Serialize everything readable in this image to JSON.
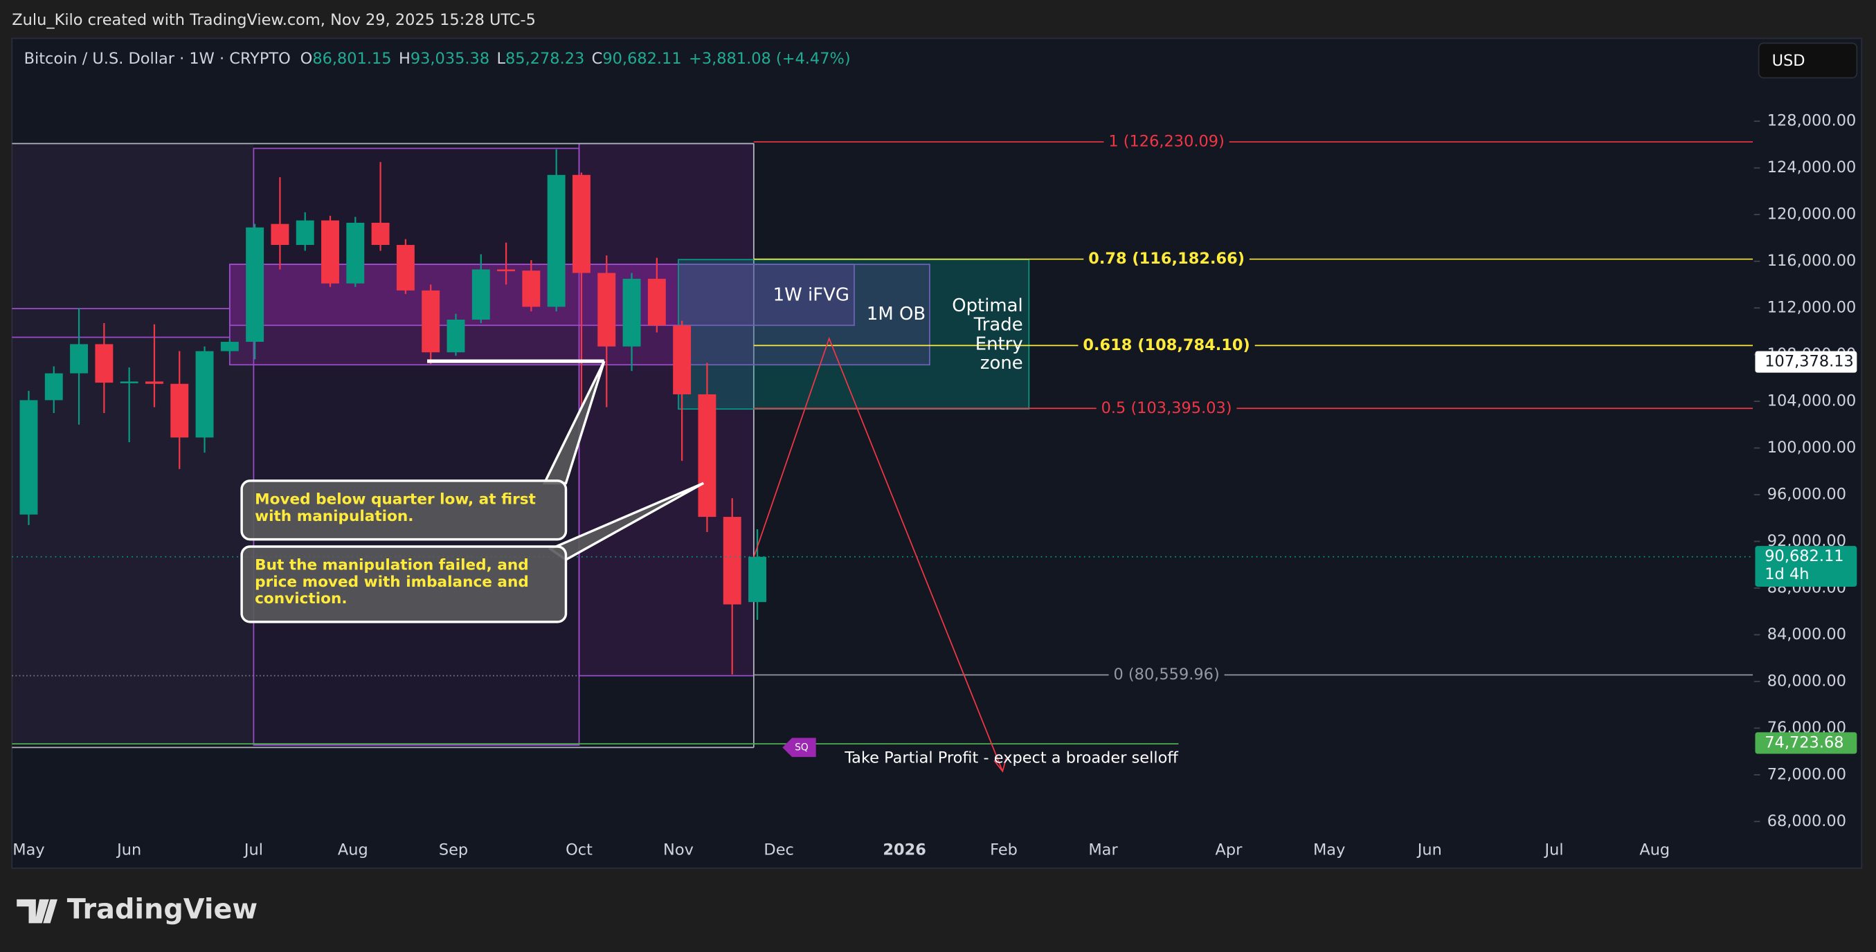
{
  "header": {
    "attribution": "Zulu_Kilo created with TradingView.com, Nov 29, 2025 15:28 UTC-5"
  },
  "legend": {
    "symbol": "Bitcoin / U.S. Dollar · 1W · CRYPTO",
    "open_key": "O",
    "open": "86,801.15",
    "high_key": "H",
    "high": "93,035.38",
    "low_key": "L",
    "low": "85,278.23",
    "close_key": "C",
    "close": "90,682.11",
    "change": "+3,881.08 (+4.47%)"
  },
  "currency": "USD",
  "logo": "TradingView",
  "chart_data": {
    "type": "candlestick",
    "categories": [
      null,
      null,
      null,
      null,
      null,
      null,
      null,
      null,
      null,
      null,
      null,
      null,
      null,
      null,
      null,
      null,
      null,
      null,
      null,
      null,
      null,
      null,
      null,
      null,
      null,
      null,
      null,
      null,
      null,
      null
    ],
    "open": [
      94300,
      104100,
      106400,
      108900,
      105600,
      105700,
      105500,
      100900,
      108300,
      109100,
      119200,
      117400,
      119500,
      114100,
      119300,
      117400,
      113500,
      108200,
      111000,
      115300,
      115200,
      112100,
      123400,
      115000,
      108700,
      114500,
      110500,
      104600,
      94100,
      86801.15
    ],
    "high": [
      104900,
      107000,
      112000,
      110700,
      106900,
      110600,
      108300,
      108700,
      109300,
      119200,
      123200,
      120200,
      119900,
      119800,
      124500,
      117900,
      114000,
      111500,
      116600,
      117600,
      116100,
      125600,
      123600,
      116500,
      115000,
      116300,
      110900,
      107300,
      95700,
      93035.38
    ],
    "low": [
      93400,
      103000,
      102000,
      103000,
      100500,
      103500,
      98200,
      99600,
      108000,
      107600,
      115300,
      116900,
      113800,
      113800,
      116900,
      113200,
      107200,
      107900,
      110700,
      114000,
      111700,
      111700,
      103500,
      103500,
      106600,
      109900,
      98900,
      92800,
      80600,
      85278.23
    ],
    "close": [
      104100,
      106400,
      108900,
      105600,
      105700,
      105500,
      100900,
      108300,
      109100,
      118900,
      117400,
      119500,
      114100,
      119300,
      117400,
      113500,
      108200,
      111000,
      115300,
      115200,
      112100,
      123400,
      115000,
      108700,
      114500,
      110500,
      104600,
      94100,
      86600,
      90682.11
    ],
    "up_color": "#089981",
    "down_color": "#f23645",
    "time_labels": [
      "May",
      "Jun",
      "Jul",
      "Aug",
      "Sep",
      "Oct",
      "Nov",
      "Dec",
      "2026",
      "Feb",
      "Mar",
      "Apr",
      "May",
      "Jun",
      "Jul",
      "Aug"
    ],
    "ylim": [
      64100,
      135100
    ],
    "yticks": [
      {
        "value": 68000,
        "label": "68,000.00"
      },
      {
        "value": 72000,
        "label": "72,000.00"
      },
      {
        "value": 76000,
        "label": "76,000.00"
      },
      {
        "value": 80000,
        "label": "80,000.00"
      },
      {
        "value": 84000,
        "label": "84,000.00"
      },
      {
        "value": 88000,
        "label": "88,000.00"
      },
      {
        "value": 92000,
        "label": "92,000.00"
      },
      {
        "value": 96000,
        "label": "96,000.00"
      },
      {
        "value": 100000,
        "label": "100,000.00"
      },
      {
        "value": 104000,
        "label": "104,000.00"
      },
      {
        "value": 108000,
        "label": "108,000.00"
      },
      {
        "value": 112000,
        "label": "112,000.00"
      },
      {
        "value": 116000,
        "label": "116,000.00"
      },
      {
        "value": 120000,
        "label": "120,000.00"
      },
      {
        "value": 124000,
        "label": "124,000.00"
      },
      {
        "value": 128000,
        "label": "128,000.00"
      }
    ],
    "fib_levels": [
      {
        "value": 126230.09,
        "label": "1 (126,230.09)",
        "color": "#f23645"
      },
      {
        "value": 116182.66,
        "label": "0.78 (116,182.66)",
        "color": "#ffeb3b"
      },
      {
        "value": 108784.1,
        "label": "0.618 (108,784.10)",
        "color": "#ffeb3b"
      },
      {
        "value": 103395.03,
        "label": "0.5 (103,395.03)",
        "color": "#f23645"
      },
      {
        "value": 80559.96,
        "label": "0 (80,559.96)",
        "color": "#9598a1"
      }
    ],
    "price_labels": [
      {
        "value": 107378.13,
        "label": "107,378.13",
        "color": "#ffffff"
      },
      {
        "value": 90682.11,
        "label": "90,682.11",
        "color": "#089981",
        "countdown": "1d 4h"
      },
      {
        "value": 74723.68,
        "label": "74,723.68",
        "color": "#4caf50"
      }
    ]
  },
  "drawings": {
    "ifvg": "1W iFVG",
    "ob": "1M OB",
    "ote": [
      "Optimal",
      "Trade",
      "Entry",
      "zone"
    ],
    "callout1": [
      "Moved below quarter low, at first",
      "with manipulation."
    ],
    "callout2": [
      "But the manipulation failed, and",
      "price moved with imbalance and",
      "conviction."
    ],
    "tag": "SQ",
    "profit": "Take Partial Profit - expect a broader selloff"
  }
}
